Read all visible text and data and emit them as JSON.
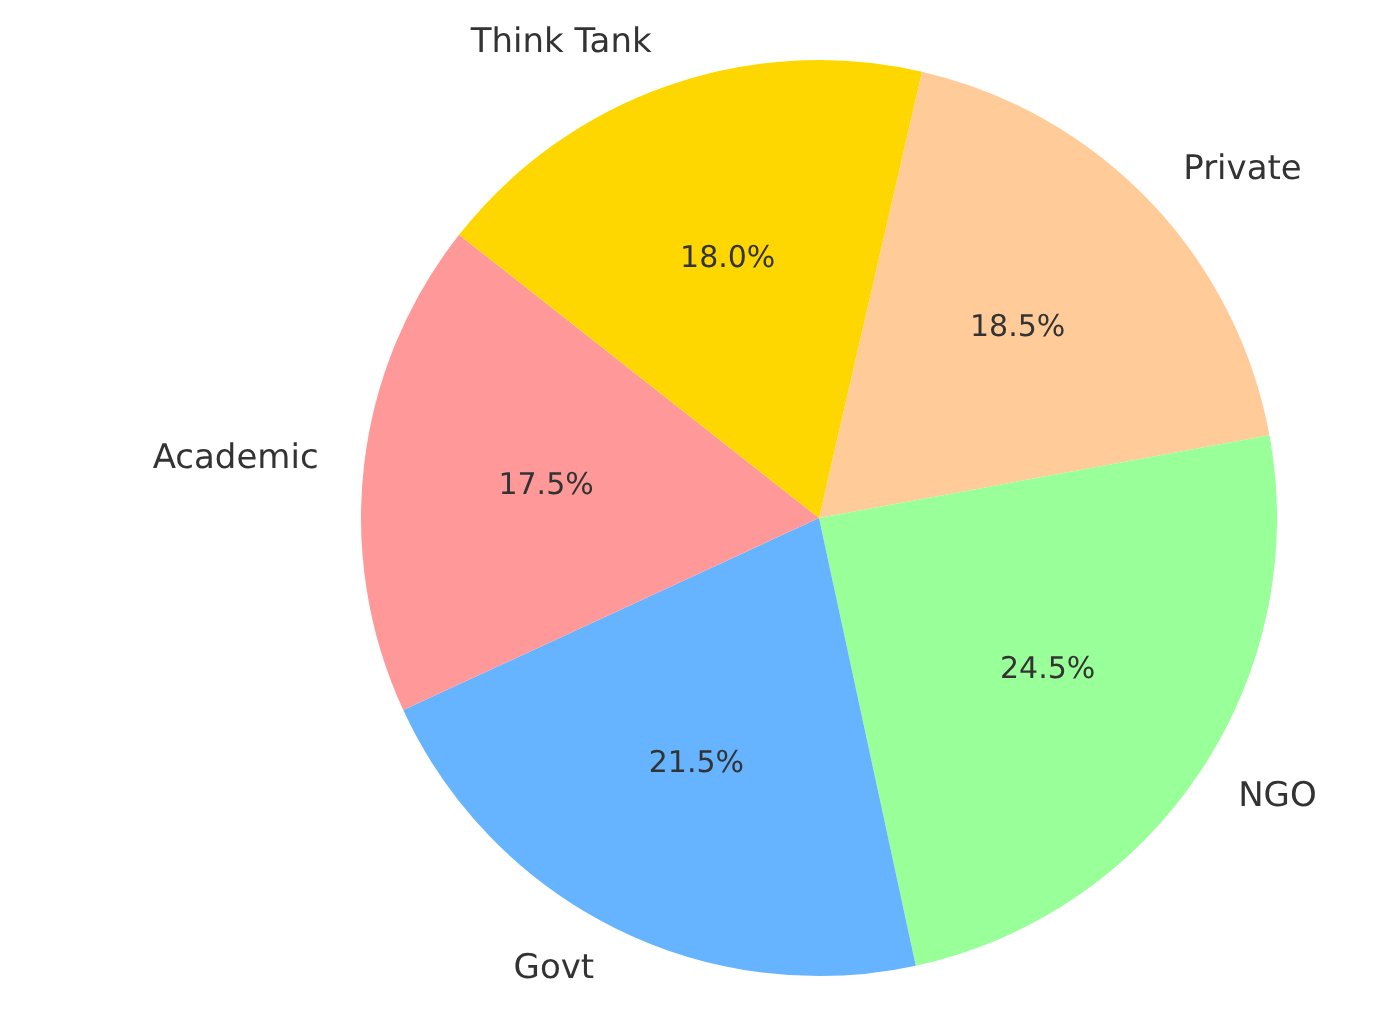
{
  "chart_data": {
    "type": "pie",
    "categories": [
      "Private",
      "NGO",
      "Govt",
      "Academic",
      "Think Tank"
    ],
    "values": [
      18.5,
      24.5,
      21.5,
      17.5,
      18.0
    ],
    "colors": [
      "#ffcc99",
      "#99ff99",
      "#66b3ff",
      "#ff9999",
      "#ffd700"
    ],
    "value_labels": [
      "18.5%",
      "24.5%",
      "21.5%",
      "17.5%",
      "18.0%"
    ],
    "legend": false
  }
}
